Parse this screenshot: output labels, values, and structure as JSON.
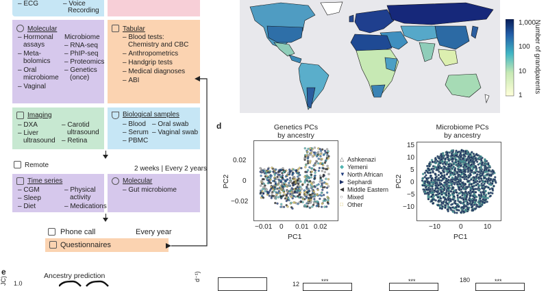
{
  "top_left_box": {
    "items": [
      "ECG"
    ]
  },
  "top_mid_box": {
    "items": [
      "Voice",
      "Recording"
    ]
  },
  "molecular": {
    "title": "Molecular",
    "col1": [
      "Hormonal",
      "assays",
      "Meta-",
      "bolomics",
      "Oral",
      "microbiome",
      "Vaginal"
    ],
    "col2": [
      "Microbiome",
      "RNA-seq",
      "PhIP-seq",
      "Proteomics",
      "Genetics",
      "(once)"
    ]
  },
  "tabular": {
    "title": "Tabular",
    "items": [
      "Blood tests:",
      "Chemistry and CBC",
      "Anthropometrics",
      "Handgrip tests",
      "Medical diagnoses",
      "ABI"
    ]
  },
  "imaging": {
    "title": "Imaging",
    "col1": [
      "DXA",
      "Liver",
      "ultrasound"
    ],
    "col2": [
      "Carotid",
      "ultrasound",
      "Retina"
    ]
  },
  "bio_samples": {
    "title": "Biological samples",
    "col1": [
      "Blood",
      "Serum",
      "PBMC"
    ],
    "col2": [
      "Oral swab",
      "Vaginal swab"
    ]
  },
  "remote": {
    "label": "Remote",
    "freq": "2 weeks | Every 2 years"
  },
  "timeseries": {
    "title": "Time series",
    "col1": [
      "CGM",
      "Sleep",
      "Diet"
    ],
    "col2": [
      "Physical",
      "activity",
      "Medications"
    ]
  },
  "molecular2": {
    "title": "Molecular",
    "items": [
      "Gut microbiome"
    ]
  },
  "phone_call": {
    "label": "Phone call",
    "freq": "Every year"
  },
  "questionnaires": {
    "label": "Questionnaires"
  },
  "map": {
    "colorbar_title": "Number of grandparents",
    "ticks": [
      "1,000",
      "100",
      "10",
      "1"
    ]
  },
  "panel_d": {
    "label": "d"
  },
  "panel_e": {
    "label": "e"
  },
  "genetics_plot": {
    "title_lines": [
      "Genetics PCs",
      "by ancestry"
    ],
    "xlabel": "PC1",
    "ylabel": "PC2",
    "xticks": [
      "−0.01",
      "0",
      "0.01",
      "0.02"
    ],
    "yticks": [
      "0.02",
      "0",
      "−0.02"
    ],
    "legend": [
      "Ashkenazi",
      "Yemeni",
      "North African",
      "Sephardi",
      "Middle Eastern",
      "Mixed",
      "Other"
    ]
  },
  "microbiome_plot": {
    "title_lines": [
      "Microbiome PCs",
      "by ancestry"
    ],
    "xlabel": "PC1",
    "ylabel": "PC2",
    "xticks": [
      "−10",
      "0",
      "10"
    ],
    "yticks": [
      "15",
      "10",
      "5",
      "0",
      "−5",
      "−10"
    ]
  },
  "bottom": {
    "title": "Ancestry prediction",
    "ytick": "1.0",
    "stars": [
      "***",
      "***",
      "***"
    ],
    "yticks_right": [
      "12",
      "180"
    ],
    "ylabel_frag": "d⁻¹)",
    "ylabel_frag2": "JC)"
  },
  "colors": {
    "blue_box": "#c6e6f5",
    "purple_box": "#d6c8ec",
    "orange_box": "#fbd3b1",
    "pink_box": "#f7cfd7",
    "green_box": "#c7e8d1",
    "map_bg": "#e8e8ec"
  }
}
